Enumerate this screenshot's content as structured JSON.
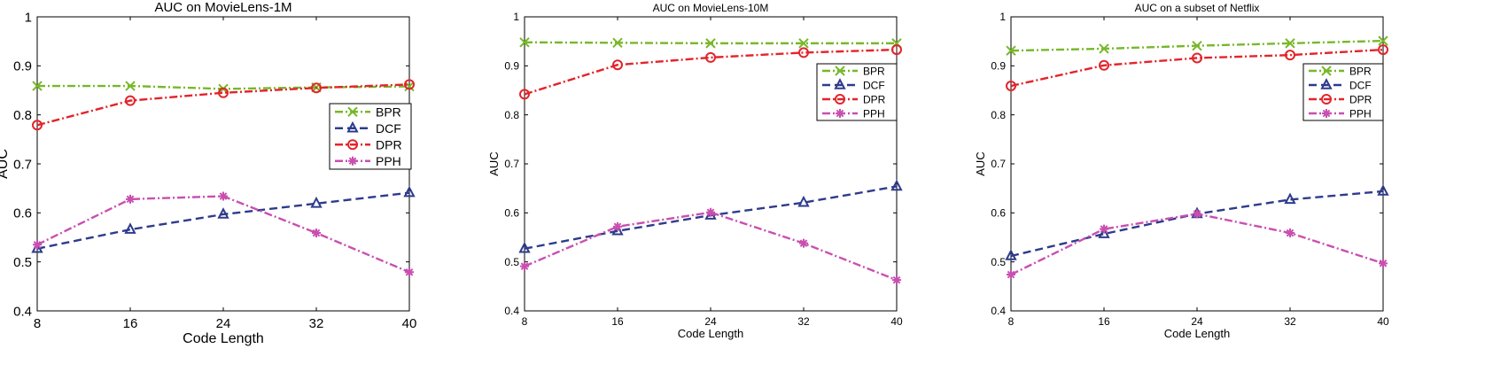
{
  "chart_data": [
    {
      "type": "line",
      "title": "AUC on MovieLens-1M",
      "xlabel": "Code Length",
      "ylabel": "AUC",
      "x": [
        8,
        16,
        24,
        32,
        40
      ],
      "xlim": [
        8,
        40
      ],
      "ylim": [
        0.4,
        1
      ],
      "xticks": [
        "8",
        "16",
        "24",
        "32",
        "40"
      ],
      "yticks": [
        "0.4",
        "0.5",
        "0.6",
        "0.7",
        "0.8",
        "0.9",
        "1"
      ],
      "legend_position": "right-middle",
      "series": [
        {
          "name": "BPR",
          "values": [
            0.859,
            0.859,
            0.853,
            0.856,
            0.858
          ],
          "color": "#77b82a",
          "marker": "x",
          "dash": "dash-dot"
        },
        {
          "name": "DCF",
          "values": [
            0.527,
            0.566,
            0.597,
            0.619,
            0.641
          ],
          "color": "#2e3b8c",
          "marker": "triangle",
          "dash": "dashed"
        },
        {
          "name": "DPR",
          "values": [
            0.779,
            0.829,
            0.845,
            0.855,
            0.862
          ],
          "color": "#e3242b",
          "marker": "circle",
          "dash": "dash-dot"
        },
        {
          "name": "PPH",
          "values": [
            0.535,
            0.628,
            0.634,
            0.559,
            0.479
          ],
          "color": "#c94fb0",
          "marker": "asterisk",
          "dash": "dash-dot"
        }
      ]
    },
    {
      "type": "line",
      "title": "AUC on MovieLens-10M",
      "xlabel": "Code Length",
      "ylabel": "AUC",
      "x": [
        8,
        16,
        24,
        32,
        40
      ],
      "xlim": [
        8,
        40
      ],
      "ylim": [
        0.4,
        1
      ],
      "xticks": [
        "8",
        "16",
        "24",
        "32",
        "40"
      ],
      "yticks": [
        "0.4",
        "0.5",
        "0.6",
        "0.7",
        "0.8",
        "0.9",
        "1"
      ],
      "legend_position": "top-right",
      "series": [
        {
          "name": "BPR",
          "values": [
            0.948,
            0.947,
            0.946,
            0.946,
            0.946
          ],
          "color": "#77b82a",
          "marker": "x",
          "dash": "dash-dot"
        },
        {
          "name": "DCF",
          "values": [
            0.527,
            0.563,
            0.595,
            0.621,
            0.654
          ],
          "color": "#2e3b8c",
          "marker": "triangle",
          "dash": "dashed"
        },
        {
          "name": "DPR",
          "values": [
            0.842,
            0.902,
            0.917,
            0.927,
            0.933
          ],
          "color": "#e3242b",
          "marker": "circle",
          "dash": "dash-dot"
        },
        {
          "name": "PPH",
          "values": [
            0.491,
            0.572,
            0.601,
            0.538,
            0.463
          ],
          "color": "#c94fb0",
          "marker": "asterisk",
          "dash": "dash-dot"
        }
      ]
    },
    {
      "type": "line",
      "title": "AUC on a subset of Netflix",
      "xlabel": "Code Length",
      "ylabel": "AUC",
      "x": [
        8,
        16,
        24,
        32,
        40
      ],
      "xlim": [
        8,
        40
      ],
      "ylim": [
        0.4,
        1
      ],
      "xticks": [
        "8",
        "16",
        "24",
        "32",
        "40"
      ],
      "yticks": [
        "0.4",
        "0.5",
        "0.6",
        "0.7",
        "0.8",
        "0.9",
        "1"
      ],
      "legend_position": "top-right",
      "series": [
        {
          "name": "BPR",
          "values": [
            0.931,
            0.935,
            0.941,
            0.946,
            0.951
          ],
          "color": "#77b82a",
          "marker": "x",
          "dash": "dash-dot"
        },
        {
          "name": "DCF",
          "values": [
            0.512,
            0.557,
            0.598,
            0.627,
            0.644
          ],
          "color": "#2e3b8c",
          "marker": "triangle",
          "dash": "dashed"
        },
        {
          "name": "DPR",
          "values": [
            0.859,
            0.901,
            0.916,
            0.922,
            0.933
          ],
          "color": "#e3242b",
          "marker": "circle",
          "dash": "dash-dot"
        },
        {
          "name": "PPH",
          "values": [
            0.474,
            0.567,
            0.598,
            0.559,
            0.497
          ],
          "color": "#c94fb0",
          "marker": "asterisk",
          "dash": "dash-dot"
        }
      ]
    }
  ]
}
